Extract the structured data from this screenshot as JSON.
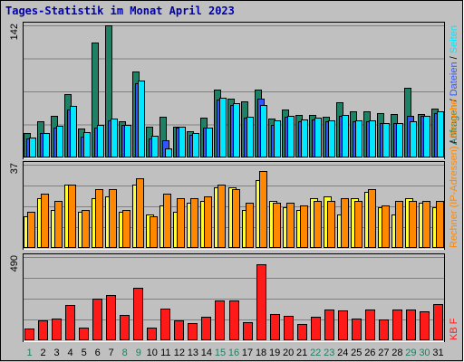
{
  "chart_data": {
    "type": "bar",
    "title": "Tages-Statistik im Monat April 2023",
    "categories": [
      "1",
      "2",
      "3",
      "4",
      "5",
      "6",
      "7",
      "8",
      "9",
      "10",
      "11",
      "12",
      "13",
      "14",
      "15",
      "16",
      "17",
      "18",
      "19",
      "20",
      "21",
      "22",
      "23",
      "24",
      "25",
      "26",
      "27",
      "28",
      "29",
      "30",
      "31"
    ],
    "weekend_categories": [
      "1",
      "8",
      "9",
      "15",
      "16",
      "22",
      "23",
      "29",
      "30"
    ],
    "colors": {
      "anfragen": "#1e8064",
      "dateien": "#3355ff",
      "seiten": "#00e8ff",
      "rechner": "#ffff33",
      "besuche": "#ff8800",
      "kb": "#ff1a1a",
      "background": "#c0c0c0",
      "title": "#0000aa",
      "weekday_tick": "#000000",
      "weekend_tick": "#1e8064"
    },
    "panels": [
      {
        "id": "top",
        "ymax_label": "142",
        "ylim": [
          0,
          142
        ],
        "legend": [
          "Anfragen",
          "/",
          "Dateien",
          "/",
          "Seiten"
        ],
        "legend_colors": [
          "#1e8064",
          "#000000",
          "#3355ff",
          "#000000",
          "#00e8ff"
        ],
        "series": [
          {
            "name": "Anfragen",
            "color": "#1e8064",
            "values": [
              26,
              39,
              45,
              68,
              31,
              124,
              142,
              39,
              92,
              33,
              44,
              33,
              28,
              43,
              73,
              63,
              60,
              73,
              42,
              52,
              46,
              46,
              44,
              59,
              50,
              50,
              48,
              47,
              75,
              47,
              53
            ]
          },
          {
            "name": "Dateien",
            "color": "#3355ff",
            "values": [
              20,
              26,
              32,
              52,
              22,
              32,
              40,
              35,
              80,
              20,
              18,
              32,
              24,
              32,
              62,
              56,
              43,
              63,
              35,
              44,
              39,
              41,
              39,
              45,
              39,
              39,
              37,
              37,
              45,
              45,
              48
            ]
          },
          {
            "name": "Seiten",
            "color": "#00e8ff",
            "values": [
              21,
              26,
              34,
              55,
              27,
              35,
              42,
              35,
              83,
              23,
              10,
              33,
              26,
              32,
              64,
              58,
              44,
              56,
              40,
              45,
              41,
              43,
              40,
              46,
              40,
              40,
              37,
              37,
              39,
              45,
              50
            ]
          }
        ]
      },
      {
        "id": "middle",
        "ymax_label": "37",
        "ylim": [
          0,
          37
        ],
        "legend": [
          "Rechner",
          "(IP-Adressen)",
          "/",
          "Besuche"
        ],
        "legend_colors": [
          "#ff8800",
          "#ff8800",
          "#000000",
          "#ff8800"
        ],
        "series": [
          {
            "name": "Rechner",
            "color": "#ffff33",
            "values": [
              14,
              22,
              17,
              28,
              16,
              22,
              23,
              16,
              28,
              15,
              19,
              16,
              20,
              21,
              27,
              27,
              17,
              30,
              21,
              18,
              17,
              22,
              23,
              15,
              22,
              25,
              18,
              15,
              22,
              20,
              18
            ]
          },
          {
            "name": "Besuche",
            "color": "#ff8800",
            "values": [
              16,
              24,
              21,
              28,
              17,
              26,
              26,
              17,
              31,
              14,
              24,
              22,
              22,
              23,
              28,
              26,
              20,
              34,
              20,
              20,
              19,
              21,
              21,
              22,
              21,
              26,
              19,
              21,
              21,
              21,
              21
            ]
          }
        ]
      },
      {
        "id": "bottom",
        "ymax_label": "490",
        "ylim": [
          0,
          490
        ],
        "legend": [
          "KB",
          "F"
        ],
        "legend_colors": [
          "#ff1a1a",
          "#ff1a1a"
        ],
        "series": [
          {
            "name": "KB F",
            "color": "#ff1a1a",
            "values": [
              67,
              116,
              127,
              206,
              72,
              246,
              268,
              148,
              311,
              72,
              185,
              116,
              103,
              140,
              236,
              236,
              105,
              445,
              157,
              143,
              98,
              140,
              180,
              174,
              127,
              180,
              123,
              182,
              182,
              172,
              211
            ]
          }
        ]
      }
    ]
  }
}
